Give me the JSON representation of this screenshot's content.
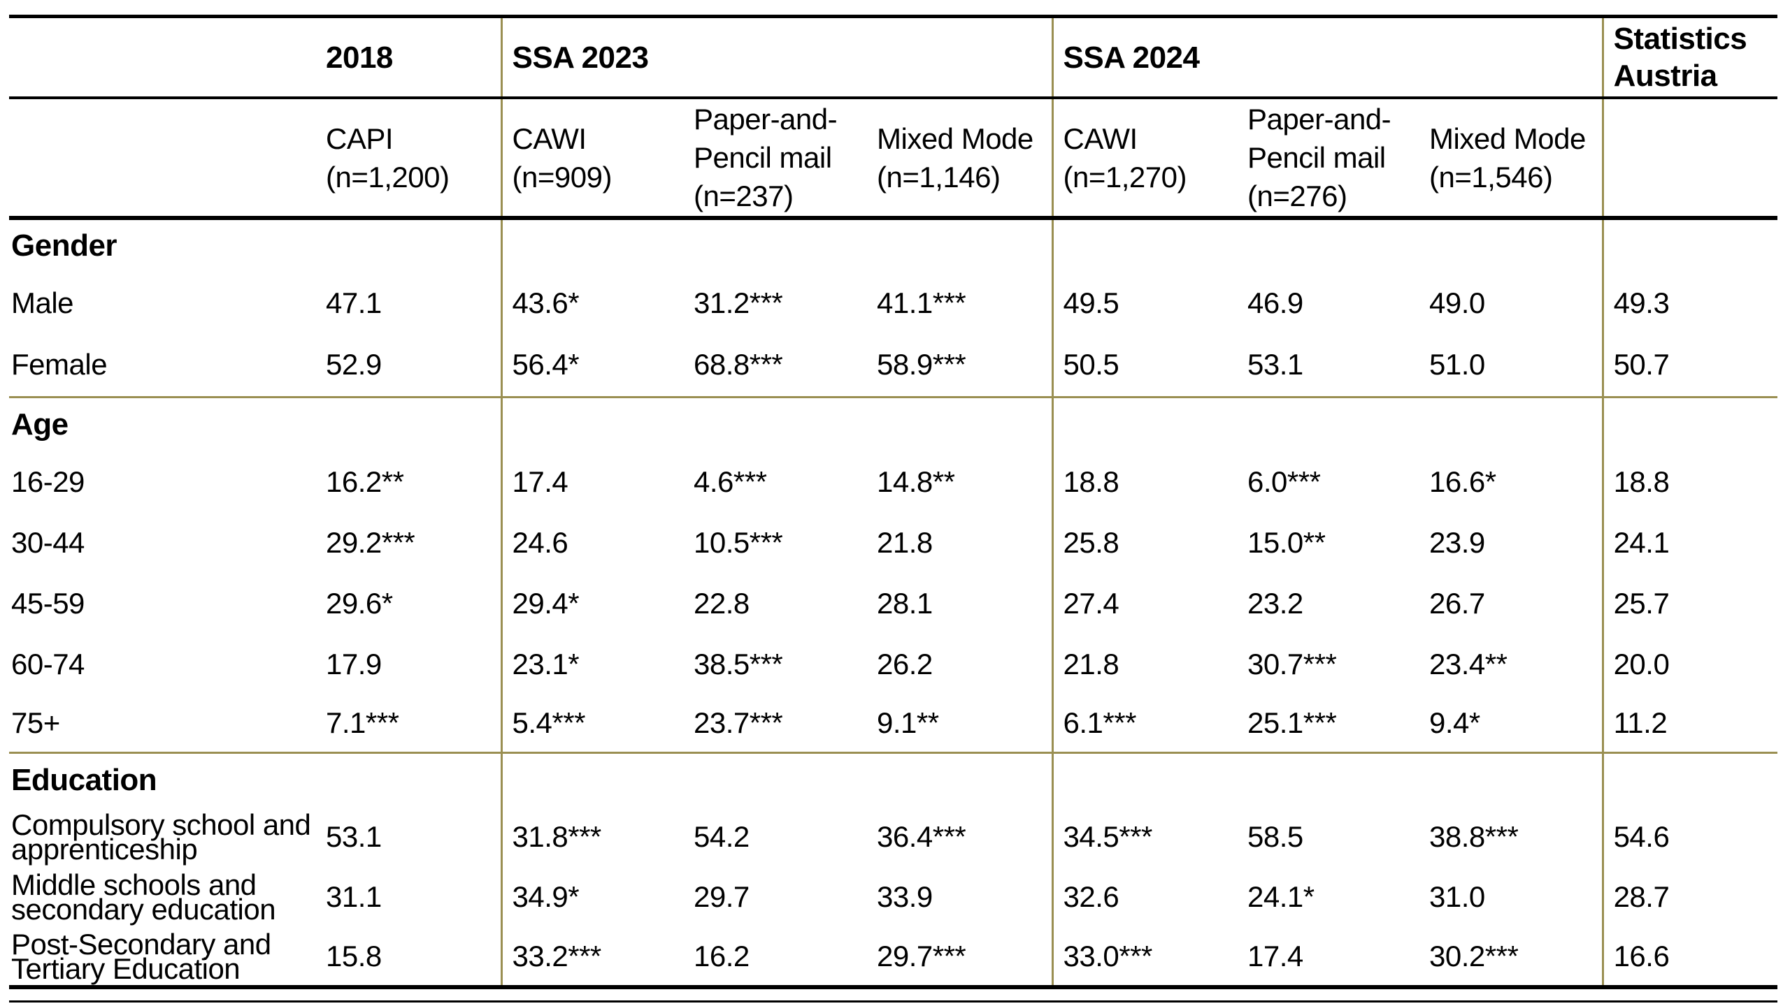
{
  "colors": {
    "olive_gridline": "#9a8f52",
    "black_rule": "#000000",
    "text": "#000000",
    "background": "#ffffff"
  },
  "table": {
    "col_count": 9,
    "header_row1": [
      {
        "lines": [],
        "span": 1,
        "olive_left": false
      },
      {
        "lines": [
          "2018"
        ],
        "span": 1,
        "olive_left": false
      },
      {
        "lines": [
          "SSA 2023"
        ],
        "span": 3,
        "olive_left": true
      },
      {
        "lines": [
          "SSA 2024"
        ],
        "span": 3,
        "olive_left": true
      },
      {
        "lines": [
          "Statistics",
          "Austria"
        ],
        "span": 1,
        "olive_left": true
      }
    ],
    "header_row2": [
      {
        "lines": []
      },
      {
        "lines": [
          "CAPI",
          "(n=1,200)"
        ]
      },
      {
        "lines": [
          "CAWI",
          "(n=909)"
        ]
      },
      {
        "lines": [
          "Paper-and-",
          "Pencil mail",
          "(n=237)"
        ]
      },
      {
        "lines": [
          "Mixed Mode",
          "(n=1,146)"
        ]
      },
      {
        "lines": [
          "CAWI",
          "(n=1,270)"
        ]
      },
      {
        "lines": [
          "Paper-and-",
          "Pencil mail",
          "(n=276)"
        ]
      },
      {
        "lines": [
          "Mixed Mode",
          "(n=1,546)"
        ]
      },
      {
        "lines": []
      }
    ],
    "sections": [
      {
        "title": "Gender",
        "rows": [
          {
            "id": "male",
            "label_lines": [
              "Male"
            ],
            "values": [
              "47.1",
              "43.6*",
              "31.2***",
              "41.1***",
              "49.5",
              "46.9",
              "49.0",
              "49.3"
            ]
          },
          {
            "id": "female",
            "label_lines": [
              "Female"
            ],
            "values": [
              "52.9",
              "56.4*",
              "68.8***",
              "58.9***",
              "50.5",
              "53.1",
              "51.0",
              "50.7"
            ]
          }
        ],
        "olive_rule_after": true
      },
      {
        "title": "Age",
        "rows": [
          {
            "id": "16-29",
            "label_lines": [
              "16-29"
            ],
            "values": [
              "16.2**",
              "17.4",
              "4.6***",
              "14.8**",
              "18.8",
              "6.0***",
              "16.6*",
              "18.8"
            ]
          },
          {
            "id": "30-44",
            "label_lines": [
              "30-44"
            ],
            "values": [
              "29.2***",
              "24.6",
              "10.5***",
              "21.8",
              "25.8",
              "15.0**",
              "23.9",
              "24.1"
            ]
          },
          {
            "id": "45-59",
            "label_lines": [
              "45-59"
            ],
            "values": [
              "29.6*",
              "29.4*",
              "22.8",
              "28.1",
              "27.4",
              "23.2",
              "26.7",
              "25.7"
            ]
          },
          {
            "id": "60-74",
            "label_lines": [
              "60-74"
            ],
            "values": [
              "17.9",
              "23.1*",
              "38.5***",
              "26.2",
              "21.8",
              "30.7***",
              "23.4**",
              "20.0"
            ]
          },
          {
            "id": "75plus",
            "label_lines": [
              "75+"
            ],
            "values": [
              "7.1***",
              "5.4***",
              "23.7***",
              "9.1**",
              "6.1***",
              "25.1***",
              "9.4*",
              "11.2"
            ]
          }
        ],
        "olive_rule_after": true
      },
      {
        "title": "Education",
        "rows": [
          {
            "id": "compulsory",
            "label_lines": [
              "Compulsory school and",
              "apprenticeship"
            ],
            "values": [
              "53.1",
              "31.8***",
              "54.2",
              "36.4***",
              "34.5***",
              "58.5",
              "38.8***",
              "54.6"
            ]
          },
          {
            "id": "middle",
            "label_lines": [
              "Middle schools and",
              "secondary education"
            ],
            "values": [
              "31.1",
              "34.9*",
              "29.7",
              "33.9",
              "32.6",
              "24.1*",
              "31.0",
              "28.7"
            ]
          },
          {
            "id": "post-secondary",
            "label_lines": [
              "Post-Secondary and",
              "Tertiary Education"
            ],
            "values": [
              "15.8",
              "33.2***",
              "16.2",
              "29.7***",
              "33.0***",
              "17.4",
              "30.2***",
              "16.6"
            ]
          }
        ],
        "olive_rule_after": false
      }
    ]
  }
}
